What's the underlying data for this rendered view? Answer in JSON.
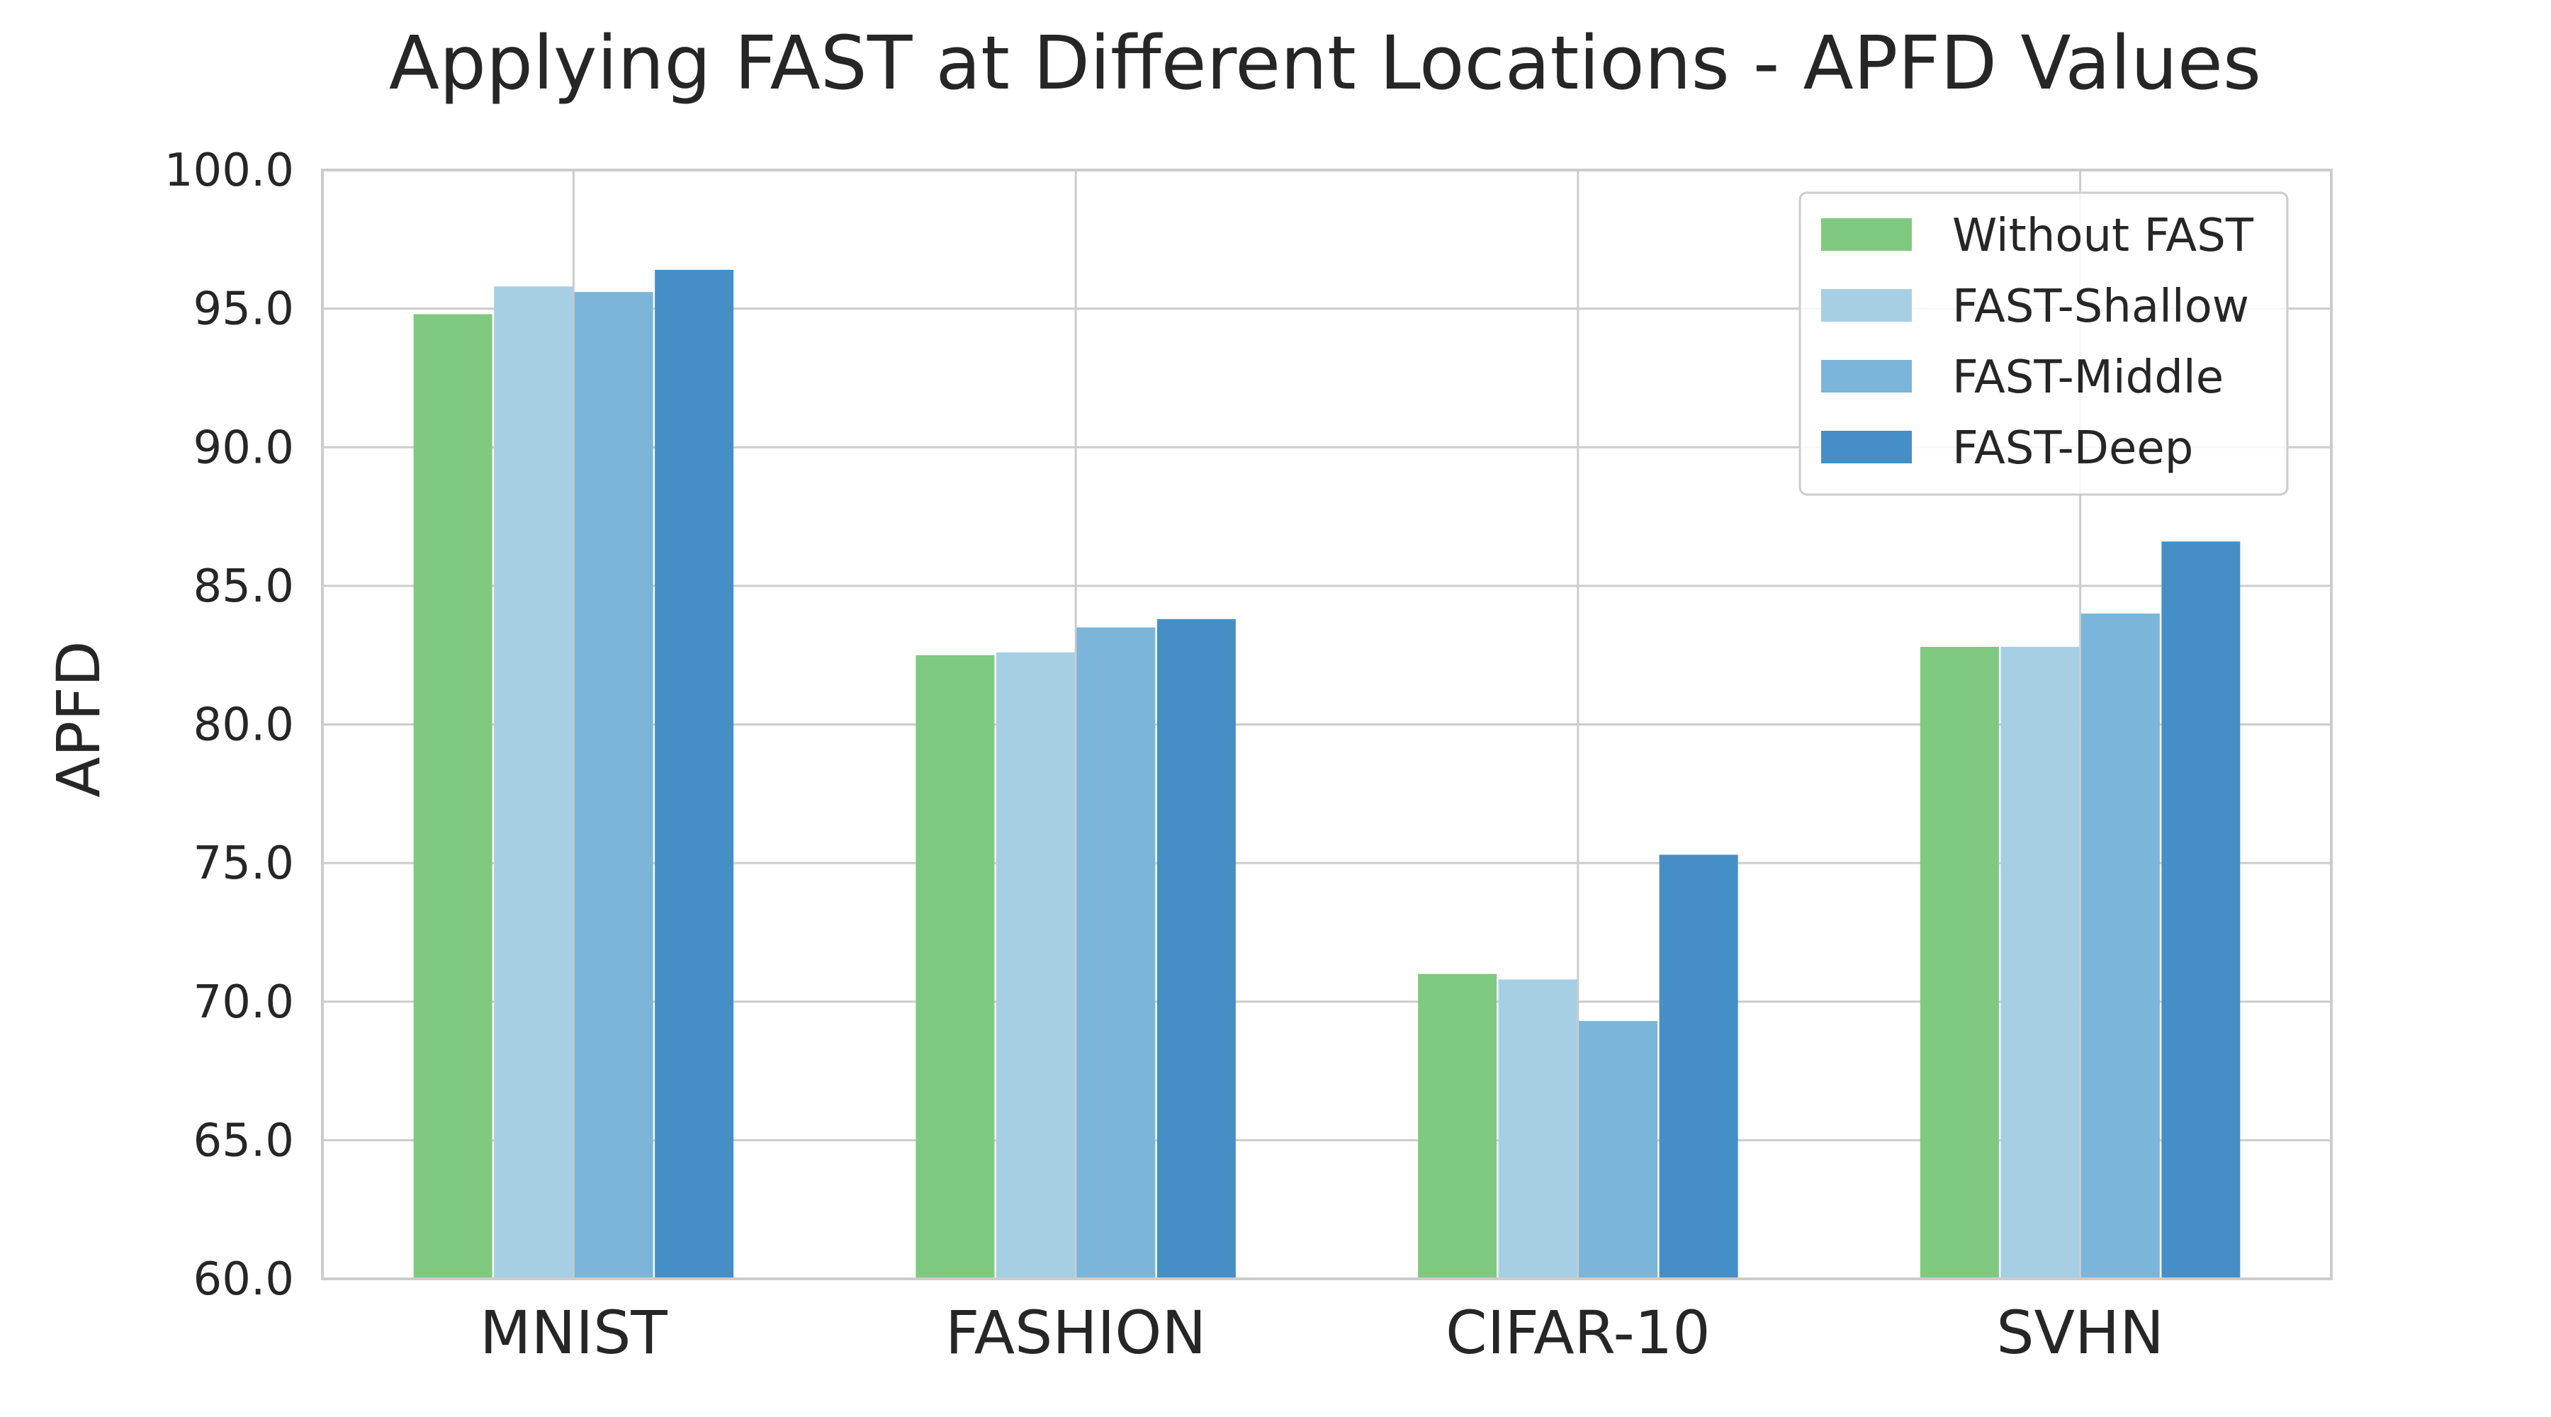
{
  "chart_data": {
    "type": "bar",
    "title": "Applying FAST at Different Locations - APFD Values",
    "xlabel": "",
    "ylabel": "APFD",
    "ylim": [
      60,
      100
    ],
    "yticks": [
      "60.0",
      "65.0",
      "70.0",
      "75.0",
      "80.0",
      "85.0",
      "90.0",
      "95.0",
      "100.0"
    ],
    "grid": true,
    "legend_position": "top-right",
    "categories": [
      "MNIST",
      "FASHION",
      "CIFAR-10",
      "SVHN"
    ],
    "series": [
      {
        "name": "Without FAST",
        "color": "#80c980",
        "values": [
          94.8,
          82.5,
          71.0,
          82.8
        ]
      },
      {
        "name": "FAST-Shallow",
        "color": "#a6cfe4",
        "values": [
          95.8,
          82.6,
          70.8,
          82.8
        ]
      },
      {
        "name": "FAST-Middle",
        "color": "#7bb5da",
        "values": [
          95.6,
          83.5,
          69.3,
          84.0
        ]
      },
      {
        "name": "FAST-Deep",
        "color": "#458fc6",
        "values": [
          96.4,
          83.8,
          75.3,
          86.6
        ]
      }
    ]
  }
}
